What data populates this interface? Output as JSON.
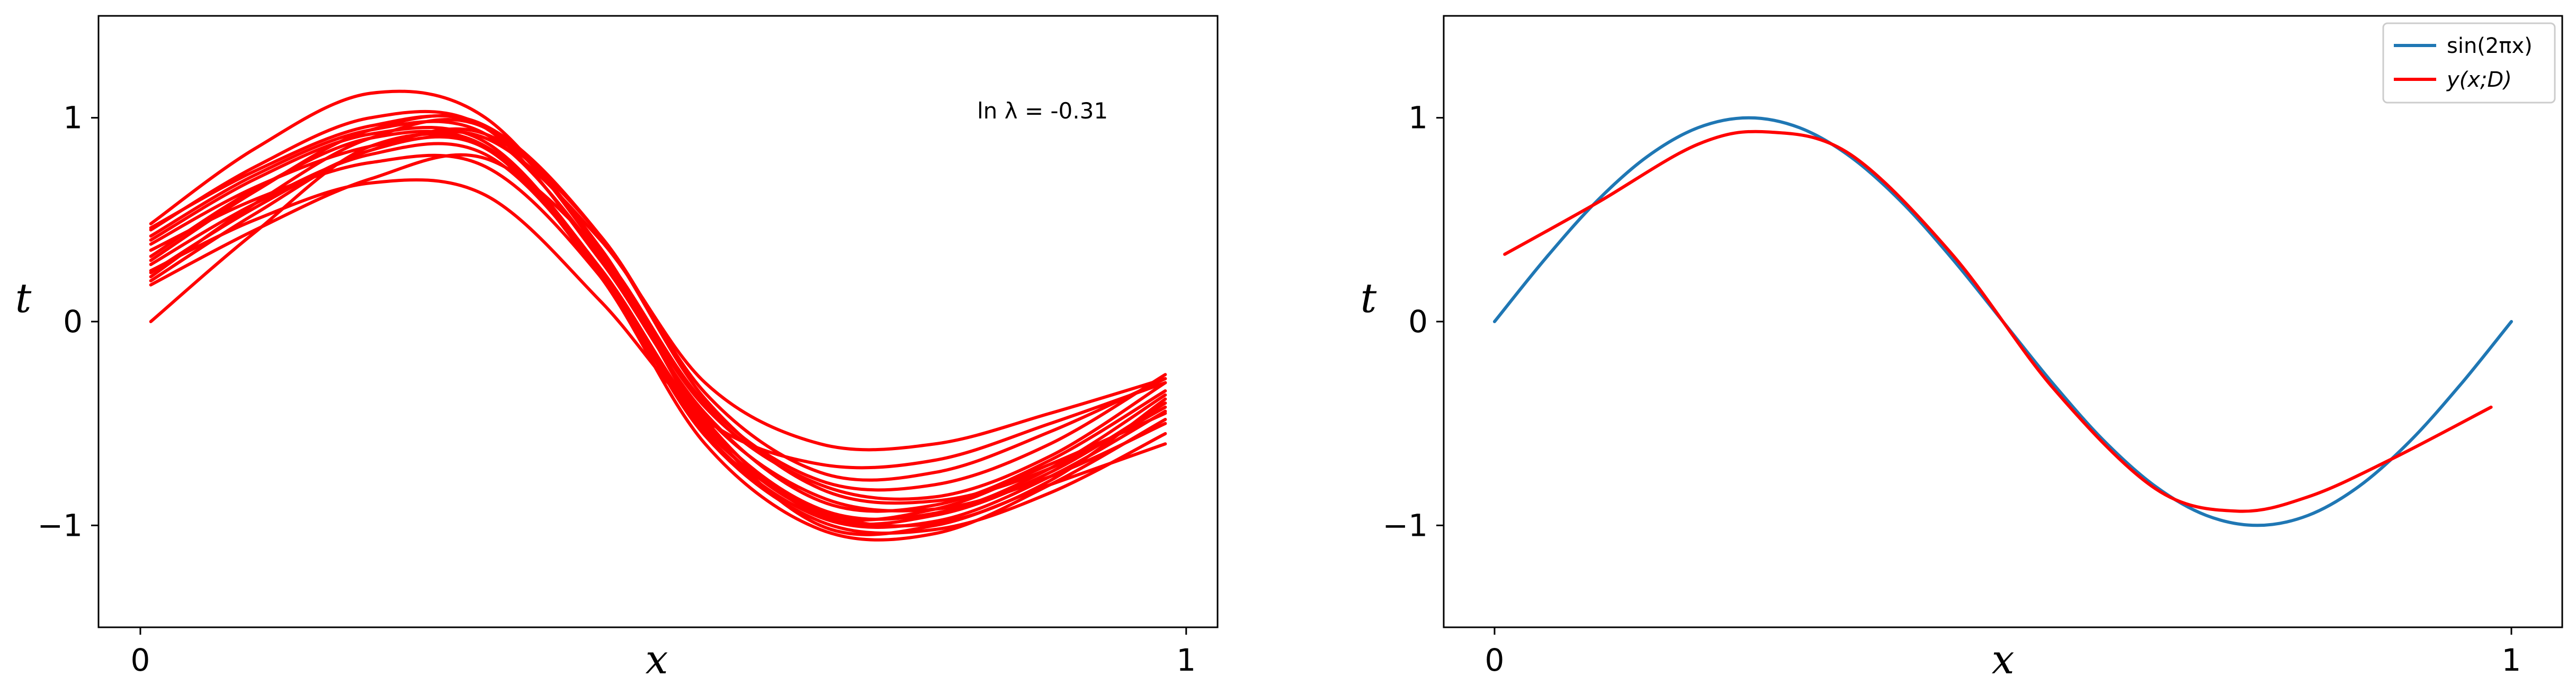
{
  "chart_data": [
    {
      "type": "line",
      "title": "",
      "xlabel": "x",
      "ylabel": "t",
      "xlim": [
        -0.04,
        1.03
      ],
      "ylim": [
        -1.5,
        1.5
      ],
      "x_ticks": [
        0,
        1
      ],
      "y_ticks": [
        -1,
        0,
        1
      ],
      "x_tick_labels": [
        "0",
        "1"
      ],
      "y_tick_labels": [
        "−1",
        "0",
        "1"
      ],
      "annotation": "ln λ = -0.31",
      "grid": false,
      "legend": null,
      "series_color": "#ff0000",
      "x": [
        0.01,
        0.11,
        0.22,
        0.33,
        0.44,
        0.54,
        0.65,
        0.76,
        0.87,
        0.98
      ],
      "series": [
        {
          "values": [
            0.0,
            0.44,
            0.86,
            0.85,
            0.23,
            -0.53,
            -0.93,
            -0.99,
            -0.78,
            -0.38
          ]
        },
        {
          "values": [
            0.3,
            0.64,
            0.94,
            0.96,
            0.36,
            -0.48,
            -0.95,
            -0.95,
            -0.74,
            -0.4
          ]
        },
        {
          "values": [
            0.48,
            0.85,
            1.12,
            1.0,
            0.34,
            -0.42,
            -0.8,
            -0.86,
            -0.66,
            -0.3
          ]
        },
        {
          "values": [
            0.2,
            0.53,
            0.84,
            0.85,
            0.22,
            -0.6,
            -1.02,
            -1.04,
            -0.8,
            -0.48
          ]
        },
        {
          "values": [
            0.4,
            0.7,
            0.92,
            0.88,
            0.26,
            -0.5,
            -0.92,
            -0.94,
            -0.72,
            -0.36
          ]
        },
        {
          "values": [
            0.25,
            0.5,
            0.68,
            0.62,
            0.1,
            -0.48,
            -0.7,
            -0.68,
            -0.5,
            -0.3
          ]
        },
        {
          "values": [
            0.35,
            0.6,
            0.78,
            0.76,
            0.22,
            -0.55,
            -0.96,
            -0.98,
            -0.76,
            -0.44
          ]
        },
        {
          "values": [
            0.45,
            0.76,
            1.0,
            0.95,
            0.3,
            -0.45,
            -0.88,
            -0.9,
            -0.68,
            -0.34
          ]
        },
        {
          "values": [
            0.18,
            0.45,
            0.7,
            0.8,
            0.34,
            -0.4,
            -0.78,
            -0.8,
            -0.6,
            -0.26
          ]
        },
        {
          "values": [
            0.22,
            0.58,
            0.9,
            0.95,
            0.35,
            -0.5,
            -1.0,
            -1.0,
            -0.8,
            -0.6
          ]
        },
        {
          "values": [
            0.32,
            0.65,
            0.9,
            0.86,
            0.26,
            -0.52,
            -0.94,
            -0.92,
            -0.7,
            -0.45
          ]
        },
        {
          "values": [
            0.42,
            0.72,
            0.94,
            0.92,
            0.32,
            -0.46,
            -0.86,
            -0.92,
            -0.76,
            -0.5
          ]
        },
        {
          "values": [
            0.28,
            0.58,
            0.82,
            0.82,
            0.24,
            -0.56,
            -0.98,
            -1.02,
            -0.84,
            -0.55
          ]
        },
        {
          "values": [
            0.38,
            0.66,
            0.86,
            0.9,
            0.4,
            -0.3,
            -0.6,
            -0.6,
            -0.45,
            -0.28
          ]
        },
        {
          "values": [
            0.46,
            0.74,
            0.96,
            0.96,
            0.42,
            -0.38,
            -0.82,
            -0.88,
            -0.72,
            -0.42
          ]
        },
        {
          "values": [
            0.24,
            0.56,
            0.84,
            0.92,
            0.42,
            -0.35,
            -0.74,
            -0.74,
            -0.54,
            -0.28
          ]
        }
      ]
    },
    {
      "type": "line",
      "title": "",
      "xlabel": "x",
      "ylabel": "t",
      "xlim": [
        -0.05,
        1.05
      ],
      "ylim": [
        -1.5,
        1.5
      ],
      "x_ticks": [
        0,
        1
      ],
      "y_ticks": [
        -1,
        0,
        1
      ],
      "x_tick_labels": [
        "0",
        "1"
      ],
      "y_tick_labels": [
        "−1",
        "0",
        "1"
      ],
      "grid": false,
      "legend": "top-right",
      "series": [
        {
          "name": "sin(2πx)",
          "color": "#1f77b4",
          "x": [
            0.0,
            0.05,
            0.1,
            0.15,
            0.2,
            0.25,
            0.3,
            0.35,
            0.4,
            0.45,
            0.5,
            0.55,
            0.6,
            0.65,
            0.7,
            0.75,
            0.8,
            0.85,
            0.9,
            0.95,
            1.0
          ],
          "values": [
            0.0,
            0.309,
            0.588,
            0.809,
            0.951,
            1.0,
            0.951,
            0.809,
            0.588,
            0.309,
            0.0,
            -0.309,
            -0.588,
            -0.809,
            -0.951,
            -1.0,
            -0.951,
            -0.809,
            -0.588,
            -0.309,
            0.0
          ]
        },
        {
          "name": "y(x;D)",
          "color": "#ff0000",
          "x": [
            0.01,
            0.1,
            0.2,
            0.27,
            0.35,
            0.45,
            0.55,
            0.65,
            0.73,
            0.8,
            0.88,
            0.98
          ],
          "values": [
            0.33,
            0.58,
            0.87,
            0.93,
            0.82,
            0.33,
            -0.33,
            -0.82,
            -0.93,
            -0.86,
            -0.68,
            -0.42
          ]
        }
      ]
    }
  ]
}
